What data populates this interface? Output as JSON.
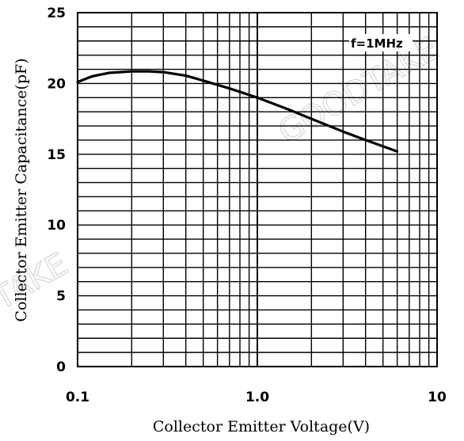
{
  "chart_data": {
    "type": "line",
    "xlabel": "Collector Emitter Voltage(V)",
    "ylabel": "Collector Emitter Capacitance(pF)",
    "x_scale": "log",
    "xlim": [
      0.1,
      10
    ],
    "ylim": [
      0,
      25
    ],
    "x_ticks": [
      {
        "value": 0.1,
        "label": "0.1"
      },
      {
        "value": 1,
        "label": "1.0"
      },
      {
        "value": 10,
        "label": "10"
      }
    ],
    "y_ticks": [
      {
        "value": 0,
        "label": "0"
      },
      {
        "value": 5,
        "label": "5"
      },
      {
        "value": 10,
        "label": "10"
      },
      {
        "value": 15,
        "label": "15"
      },
      {
        "value": 20,
        "label": "20"
      },
      {
        "value": 25,
        "label": "25"
      }
    ],
    "grid": true,
    "annotation": "f=1MHz",
    "watermark": [
      "GOODTAKE",
      "TAKE"
    ],
    "series": [
      {
        "x": [
          0.1,
          0.12,
          0.15,
          0.2,
          0.25,
          0.3,
          0.4,
          0.5,
          0.7,
          1.0,
          1.5,
          2.0,
          3.0,
          4.0,
          6.0
        ],
        "y": [
          20.1,
          20.5,
          20.75,
          20.85,
          20.85,
          20.8,
          20.55,
          20.2,
          19.65,
          19.0,
          18.15,
          17.5,
          16.6,
          16.0,
          15.2
        ]
      }
    ]
  }
}
